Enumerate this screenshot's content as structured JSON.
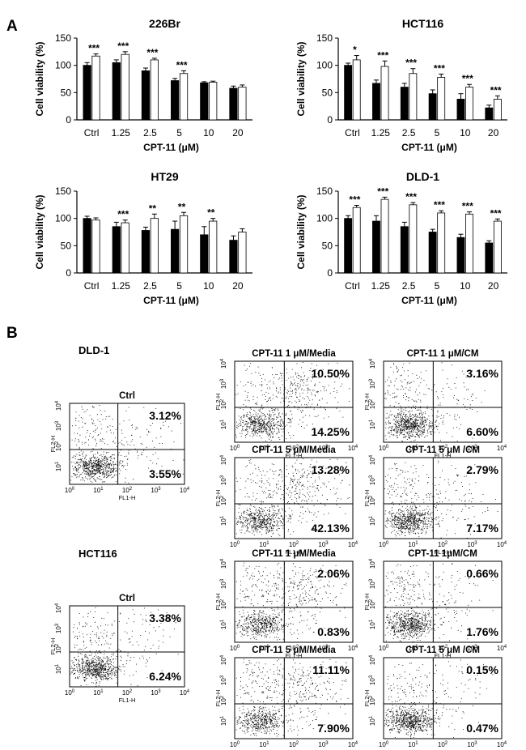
{
  "figure": {
    "panel_a_label": "A",
    "panel_b_label": "B"
  },
  "chart_data": [
    {
      "type": "bar",
      "title": "226Br",
      "xlabel": "CPT-11 (μM)",
      "ylabel": "Cell viability (%)",
      "ylim": [
        0,
        150
      ],
      "yticks": [
        0,
        50,
        100,
        150
      ],
      "categories": [
        "Ctrl",
        "1.25",
        "2.5",
        "5",
        "10",
        "20"
      ],
      "series": [
        {
          "values": [
            100,
            105,
            90,
            72,
            68,
            58
          ],
          "errors": [
            5,
            5,
            5,
            4,
            2,
            4
          ],
          "color": "#000000"
        },
        {
          "values": [
            117,
            120,
            110,
            85,
            69,
            60
          ],
          "errors": [
            4,
            5,
            3,
            5,
            2,
            4
          ],
          "color": "#ffffff"
        }
      ],
      "significance": [
        "***",
        "***",
        "***",
        "***",
        "",
        ""
      ]
    },
    {
      "type": "bar",
      "title": "HCT116",
      "xlabel": "CPT-11 (μM)",
      "ylabel": "Cell viability (%)",
      "ylim": [
        0,
        150
      ],
      "yticks": [
        0,
        50,
        100,
        150
      ],
      "categories": [
        "Ctrl",
        "1.25",
        "2.5",
        "5",
        "10",
        "20"
      ],
      "series": [
        {
          "values": [
            100,
            67,
            60,
            48,
            38,
            22
          ],
          "errors": [
            4,
            6,
            7,
            7,
            10,
            5
          ],
          "color": "#000000"
        },
        {
          "values": [
            110,
            98,
            85,
            78,
            60,
            38
          ],
          "errors": [
            8,
            10,
            9,
            6,
            5,
            6
          ],
          "color": "#ffffff"
        }
      ],
      "significance": [
        "*",
        "***",
        "***",
        "***",
        "***",
        "***"
      ]
    },
    {
      "type": "bar",
      "title": "HT29",
      "xlabel": "CPT-11 (μM)",
      "ylabel": "Cell viability (%)",
      "ylim": [
        0,
        150
      ],
      "yticks": [
        0,
        50,
        100,
        150
      ],
      "categories": [
        "Ctrl",
        "1.25",
        "2.5",
        "5",
        "10",
        "20"
      ],
      "series": [
        {
          "values": [
            100,
            85,
            78,
            80,
            70,
            60
          ],
          "errors": [
            4,
            8,
            6,
            15,
            15,
            8
          ],
          "color": "#000000"
        },
        {
          "values": [
            97,
            92,
            100,
            105,
            95,
            75
          ],
          "errors": [
            4,
            5,
            8,
            6,
            5,
            6
          ],
          "color": "#ffffff"
        }
      ],
      "significance": [
        "",
        "***",
        "**",
        "**",
        "**",
        ""
      ]
    },
    {
      "type": "bar",
      "title": "DLD-1",
      "xlabel": "CPT-11 (μM)",
      "ylabel": "Cell viability (%)",
      "ylim": [
        0,
        150
      ],
      "yticks": [
        0,
        50,
        100,
        150
      ],
      "categories": [
        "Ctrl",
        "1.25",
        "2.5",
        "5",
        "10",
        "20"
      ],
      "series": [
        {
          "values": [
            100,
            95,
            85,
            75,
            65,
            55
          ],
          "errors": [
            5,
            10,
            8,
            5,
            6,
            4
          ],
          "color": "#000000"
        },
        {
          "values": [
            120,
            135,
            125,
            110,
            108,
            95
          ],
          "errors": [
            4,
            4,
            4,
            4,
            4,
            4
          ],
          "color": "#ffffff"
        }
      ],
      "significance": [
        "***",
        "***",
        "***",
        "***",
        "***",
        "***"
      ]
    }
  ],
  "flow": {
    "xlabel": "FL1-H",
    "ylabel": "FL2-H",
    "ticks": [
      "10",
      "10",
      "10",
      "10",
      "10"
    ],
    "exps": [
      "0",
      "1",
      "2",
      "3",
      "4"
    ],
    "groups": [
      {
        "cell_line": "DLD-1",
        "ctrl": {
          "title": "Ctrl",
          "upper_right": "3.12%",
          "lower_right": "3.55%"
        },
        "plots": [
          {
            "title": "CPT-11 1 μM/Media",
            "upper_right": "10.50%",
            "lower_right": "14.25%"
          },
          {
            "title": "CPT-11 1 μM/CM",
            "upper_right": "3.16%",
            "lower_right": "6.60%"
          },
          {
            "title": "CPT-11 5 μM/Media",
            "upper_right": "13.28%",
            "lower_right": "42.13%"
          },
          {
            "title": "CPT-11 5 μM /CM",
            "upper_right": "2.79%",
            "lower_right": "7.17%"
          }
        ]
      },
      {
        "cell_line": "HCT116",
        "ctrl": {
          "title": "Ctrl",
          "upper_right": "3.38%",
          "lower_right": "6.24%"
        },
        "plots": [
          {
            "title": "CPT-11 1 μM/Media",
            "upper_right": "2.06%",
            "lower_right": "0.83%"
          },
          {
            "title": "CPT-11 1μM/CM",
            "upper_right": "0.66%",
            "lower_right": "1.76%"
          },
          {
            "title": "CPT-11 5 μM/Media",
            "upper_right": "11.11%",
            "lower_right": "7.90%"
          },
          {
            "title": "CPT-11 5 μM /CM",
            "upper_right": "0.15%",
            "lower_right": "0.47%"
          }
        ]
      }
    ]
  }
}
